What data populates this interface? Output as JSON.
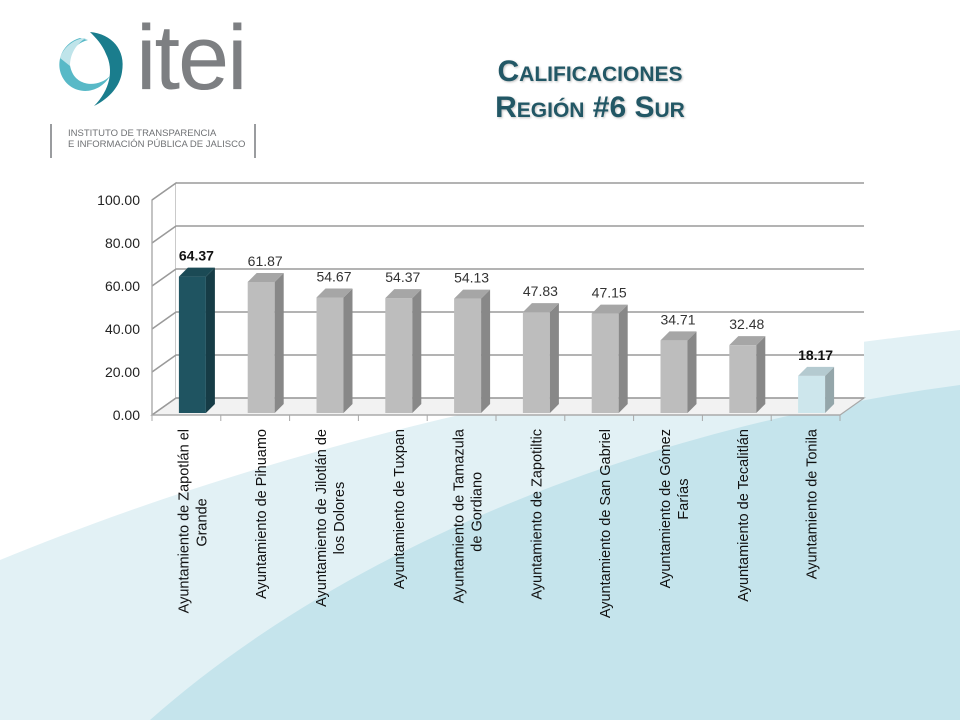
{
  "logo": {
    "wordmark": "itei",
    "subtitle_line1": "INSTITUTO DE TRANSPARENCIA",
    "subtitle_line2": "E INFORMACIÓN PÚBLICA DE JALISCO"
  },
  "title": {
    "line1": "Calificaciones",
    "line2": "Región #6 Sur"
  },
  "colors": {
    "highest_bar": "#1f5461",
    "lowest_bar": "#cde6ec",
    "default_bar": "#bdbdbd",
    "title": "#225765"
  },
  "chart_data": {
    "type": "bar",
    "categories": [
      [
        "Ayuntamiento de Zapotlán el",
        "Grande"
      ],
      [
        "Ayuntamiento de Pihuamo"
      ],
      [
        "Ayuntamiento de Jilotlán de",
        "los Dolores"
      ],
      [
        "Ayuntamiento de Tuxpan"
      ],
      [
        "Ayuntamiento de Tamazula",
        "de Gordiano"
      ],
      [
        "Ayuntamiento de Zapotiltic"
      ],
      [
        "Ayuntamiento de San Gabriel"
      ],
      [
        "Ayuntamiento de Gómez",
        "Farías"
      ],
      [
        "Ayuntamiento de Tecalitlán"
      ],
      [
        "Ayuntamiento de Tonila"
      ]
    ],
    "values": [
      64.37,
      61.87,
      54.67,
      54.37,
      54.13,
      47.83,
      47.15,
      34.71,
      32.48,
      18.17
    ],
    "value_labels": [
      "64.37",
      "61.87",
      "54.67",
      "54.37",
      "54.13",
      "47.83",
      "47.15",
      "34.71",
      "32.48",
      "18.17"
    ],
    "bold_labels": [
      0,
      9
    ],
    "yticks": [
      "0.00",
      "20.00",
      "40.00",
      "60.00",
      "80.00",
      "100.00"
    ],
    "ylim": [
      0,
      100
    ],
    "grid": true,
    "style": "3d-bar"
  }
}
